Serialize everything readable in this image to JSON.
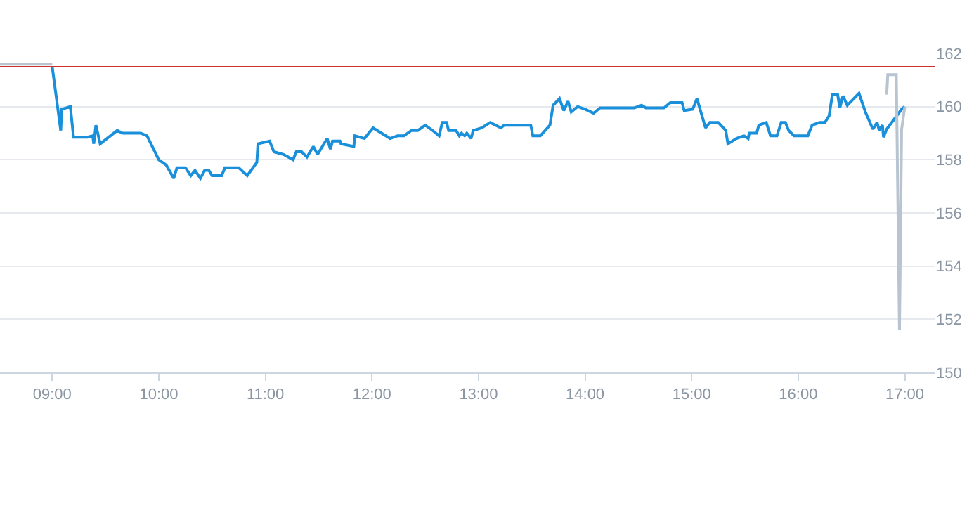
{
  "chart_data": {
    "type": "line",
    "xlim": [
      8.51,
      17.28
    ],
    "ylim": [
      150,
      162
    ],
    "xticks": [
      {
        "value": 9,
        "label": "09:00"
      },
      {
        "value": 10,
        "label": "10:00"
      },
      {
        "value": 11,
        "label": "11:00"
      },
      {
        "value": 12,
        "label": "12:00"
      },
      {
        "value": 13,
        "label": "13:00"
      },
      {
        "value": 14,
        "label": "14:00"
      },
      {
        "value": 15,
        "label": "15:00"
      },
      {
        "value": 16,
        "label": "16:00"
      },
      {
        "value": 17,
        "label": "17:00"
      }
    ],
    "yticks": [
      150,
      152,
      154,
      156,
      158,
      160,
      162
    ],
    "grid": "y",
    "marker": "none",
    "line_style": "solid",
    "ref_lines": [
      {
        "axis": "y",
        "value": 161.5,
        "color": "#d0312d"
      }
    ],
    "series": [
      {
        "color": "#b8c4d0",
        "x": [
          8.51,
          9.0
        ],
        "values": [
          161.6,
          161.6
        ]
      },
      {
        "color": "#1a90db",
        "x": [
          9.0,
          9.08,
          9.09,
          9.17,
          9.2,
          9.33,
          9.38,
          9.39,
          9.41,
          9.45,
          9.61,
          9.66,
          9.83,
          9.89,
          10.0,
          10.07,
          10.14,
          10.17,
          10.25,
          10.3,
          10.34,
          10.39,
          10.43,
          10.47,
          10.5,
          10.59,
          10.62,
          10.75,
          10.83,
          10.92,
          10.93,
          11.04,
          11.08,
          11.17,
          11.26,
          11.29,
          11.34,
          11.39,
          11.45,
          11.49,
          11.58,
          11.61,
          11.63,
          11.7,
          11.71,
          11.83,
          11.84,
          11.93,
          12.01,
          12.09,
          12.17,
          12.24,
          12.3,
          12.37,
          12.43,
          12.5,
          12.57,
          12.63,
          12.66,
          12.7,
          12.72,
          12.79,
          12.82,
          12.84,
          12.87,
          12.89,
          12.93,
          12.95,
          13.03,
          13.11,
          13.21,
          13.24,
          13.49,
          13.51,
          13.58,
          13.67,
          13.7,
          13.76,
          13.8,
          13.84,
          13.87,
          13.93,
          14.0,
          14.08,
          14.14,
          14.46,
          14.53,
          14.57,
          14.74,
          14.8,
          14.91,
          14.93,
          15.01,
          15.05,
          15.13,
          15.17,
          15.25,
          15.32,
          15.34,
          15.42,
          15.49,
          15.53,
          15.54,
          15.61,
          15.63,
          15.7,
          15.74,
          15.8,
          15.84,
          15.88,
          15.91,
          15.96,
          16.09,
          16.13,
          16.2,
          16.25,
          16.29,
          16.32,
          16.37,
          16.39,
          16.42,
          16.46,
          16.57,
          16.63,
          16.7,
          16.74,
          16.76,
          16.79,
          16.8,
          16.83,
          16.97,
          17.0
        ],
        "values": [
          161.5,
          159.1,
          159.9,
          160.0,
          158.85,
          158.85,
          158.9,
          158.6,
          159.3,
          158.6,
          159.1,
          159.0,
          159.0,
          158.9,
          158.0,
          157.8,
          157.3,
          157.7,
          157.7,
          157.4,
          157.6,
          157.3,
          157.6,
          157.6,
          157.4,
          157.4,
          157.7,
          157.7,
          157.4,
          157.9,
          158.6,
          158.7,
          158.3,
          158.2,
          158.0,
          158.3,
          158.3,
          158.1,
          158.5,
          158.2,
          158.8,
          158.4,
          158.7,
          158.7,
          158.6,
          158.5,
          158.9,
          158.8,
          159.2,
          159.0,
          158.8,
          158.9,
          158.9,
          159.1,
          159.1,
          159.3,
          159.1,
          158.9,
          159.4,
          159.4,
          159.1,
          159.1,
          158.9,
          159.0,
          158.9,
          159.0,
          158.8,
          159.1,
          159.2,
          159.4,
          159.2,
          159.3,
          159.3,
          158.9,
          158.9,
          159.3,
          160.05,
          160.3,
          159.85,
          160.2,
          159.8,
          160.0,
          159.9,
          159.75,
          159.95,
          159.95,
          160.05,
          159.95,
          159.95,
          160.15,
          160.15,
          159.85,
          159.9,
          160.3,
          159.2,
          159.4,
          159.4,
          159.1,
          158.6,
          158.8,
          158.9,
          158.8,
          159.0,
          159.0,
          159.3,
          159.4,
          158.9,
          158.9,
          159.4,
          159.4,
          159.1,
          158.9,
          158.9,
          159.3,
          159.4,
          159.4,
          159.65,
          160.45,
          160.45,
          159.95,
          160.4,
          160.05,
          160.5,
          159.8,
          159.15,
          159.4,
          159.1,
          159.3,
          158.85,
          159.15,
          159.9,
          160.0
        ]
      },
      {
        "color": "#b8c4d0",
        "x": [
          16.83,
          16.84,
          16.92,
          16.95,
          16.97,
          17.0
        ],
        "values": [
          160.45,
          161.2,
          161.2,
          151.6,
          159.15,
          160.0
        ]
      }
    ]
  }
}
